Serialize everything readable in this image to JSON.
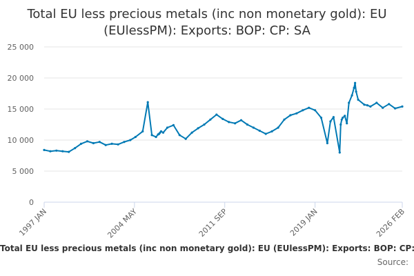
{
  "chart_data": {
    "type": "line",
    "title": "Total EU less precious metals (inc non monetary gold): EU (EUlessPM): Exports: BOP: CP: SA",
    "title_lines": [
      "Total EU less precious metals (inc non monetary gold): EU",
      "(EUlessPM): Exports: BOP: CP: SA"
    ],
    "xlabel": "",
    "ylabel": "",
    "ylim": [
      0,
      25000
    ],
    "yticks": [
      0,
      5000,
      10000,
      15000,
      20000,
      25000
    ],
    "ytick_labels": [
      "0",
      "5 000",
      "10 000",
      "15 000",
      "20 000",
      "25 000"
    ],
    "xlim": [
      "1997-01",
      "2026-02"
    ],
    "xticks": [
      "1997-01",
      "2004-05",
      "2011-09",
      "2019-01",
      "2026-02"
    ],
    "xtick_labels": [
      "1997 JAN",
      "2004 MAY",
      "2011 SEP",
      "2019 JAN",
      "2026 FEB"
    ],
    "grid": true,
    "legend_position": "bottom",
    "colors": {
      "series": "#0079b4",
      "grid": "#e6e6e6",
      "axis": "#ccd6eb"
    },
    "series": [
      {
        "name": "Total EU less precious metals (inc non monetary gold): EU (EUlessPM): Exports: BOP: CP: SA",
        "x": [
          "1997-01",
          "1997-07",
          "1998-01",
          "1998-07",
          "1999-01",
          "1999-07",
          "2000-01",
          "2000-07",
          "2001-01",
          "2001-07",
          "2002-01",
          "2002-07",
          "2003-01",
          "2003-07",
          "2004-01",
          "2004-06",
          "2005-01",
          "2005-06",
          "2005-10",
          "2006-02",
          "2006-04",
          "2006-05",
          "2006-06",
          "2006-07",
          "2006-09",
          "2007-01",
          "2007-07",
          "2008-01",
          "2008-07",
          "2009-01",
          "2009-07",
          "2010-01",
          "2010-07",
          "2011-01",
          "2011-07",
          "2012-01",
          "2012-07",
          "2013-01",
          "2013-07",
          "2014-01",
          "2014-07",
          "2015-01",
          "2015-07",
          "2016-01",
          "2016-07",
          "2017-01",
          "2017-07",
          "2018-01",
          "2018-07",
          "2019-01",
          "2019-07",
          "2020-01",
          "2020-04",
          "2020-07",
          "2021-01",
          "2021-02",
          "2021-03",
          "2021-04",
          "2021-06",
          "2021-08",
          "2021-10",
          "2022-01",
          "2022-03",
          "2022-04",
          "2022-05",
          "2022-07",
          "2023-01",
          "2023-04",
          "2023-07",
          "2024-01",
          "2024-07",
          "2025-01",
          "2025-07",
          "2026-02"
        ],
        "values": [
          8400,
          8200,
          8300,
          8200,
          8100,
          8700,
          9400,
          9800,
          9500,
          9700,
          9200,
          9400,
          9300,
          9700,
          10000,
          10500,
          11400,
          16100,
          10800,
          10500,
          10900,
          11000,
          11200,
          11400,
          11200,
          12000,
          12400,
          10800,
          10200,
          11200,
          11900,
          12500,
          13300,
          14100,
          13400,
          12900,
          12700,
          13200,
          12500,
          12000,
          11500,
          11000,
          11400,
          12000,
          13300,
          14000,
          14300,
          14800,
          15200,
          14800,
          13600,
          9500,
          13000,
          13700,
          8000,
          12500,
          13300,
          13600,
          13900,
          12700,
          16000,
          17200,
          18400,
          19200,
          17800,
          16500,
          15700,
          15600,
          15400,
          16000,
          15200,
          15800,
          15100,
          15400
        ]
      }
    ]
  },
  "legend": {
    "label": "Total EU less precious metals (inc non monetary gold): EU (EUlessPM): Exports: BOP: CP: SA"
  },
  "source": {
    "label": "Source:"
  }
}
